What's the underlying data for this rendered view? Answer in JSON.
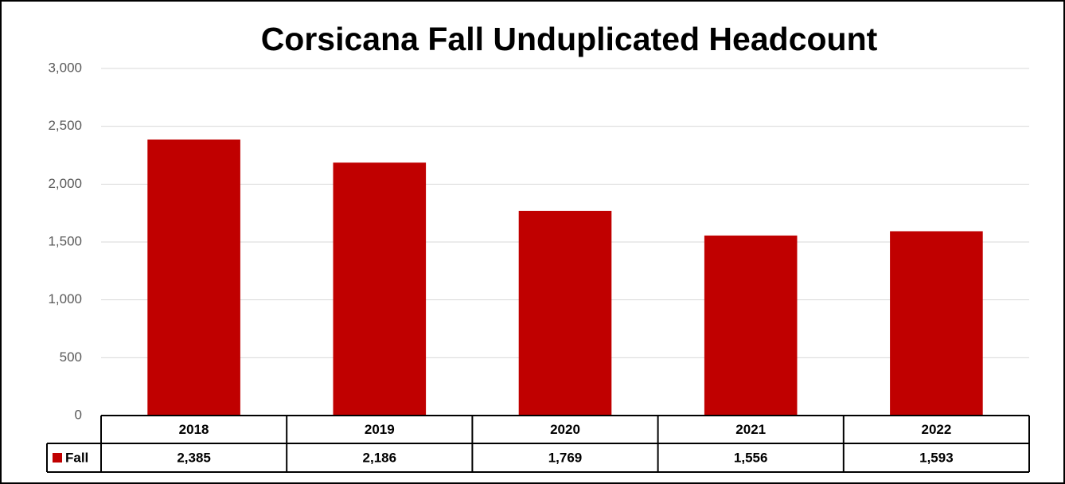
{
  "chart_data": {
    "type": "bar",
    "title": "Corsicana Fall Unduplicated Headcount",
    "categories": [
      "2018",
      "2019",
      "2020",
      "2021",
      "2022"
    ],
    "series": [
      {
        "name": "Fall",
        "color": "#c00000",
        "values": [
          2385,
          2186,
          1769,
          1556,
          1593
        ],
        "value_labels": [
          "2,385",
          "2,186",
          "1,769",
          "1,556",
          "1,593"
        ]
      }
    ],
    "ylim": [
      0,
      3000
    ],
    "yticks": [
      0,
      500,
      {
        "value": 1000,
        "label": "1,000"
      },
      {
        "value": 1500,
        "label": "1,500"
      },
      {
        "value": 2000,
        "label": "2,000"
      },
      {
        "value": 2500,
        "label": "2,500"
      },
      {
        "value": 3000,
        "label": "3,000"
      }
    ],
    "grid": true,
    "data_table": true
  }
}
